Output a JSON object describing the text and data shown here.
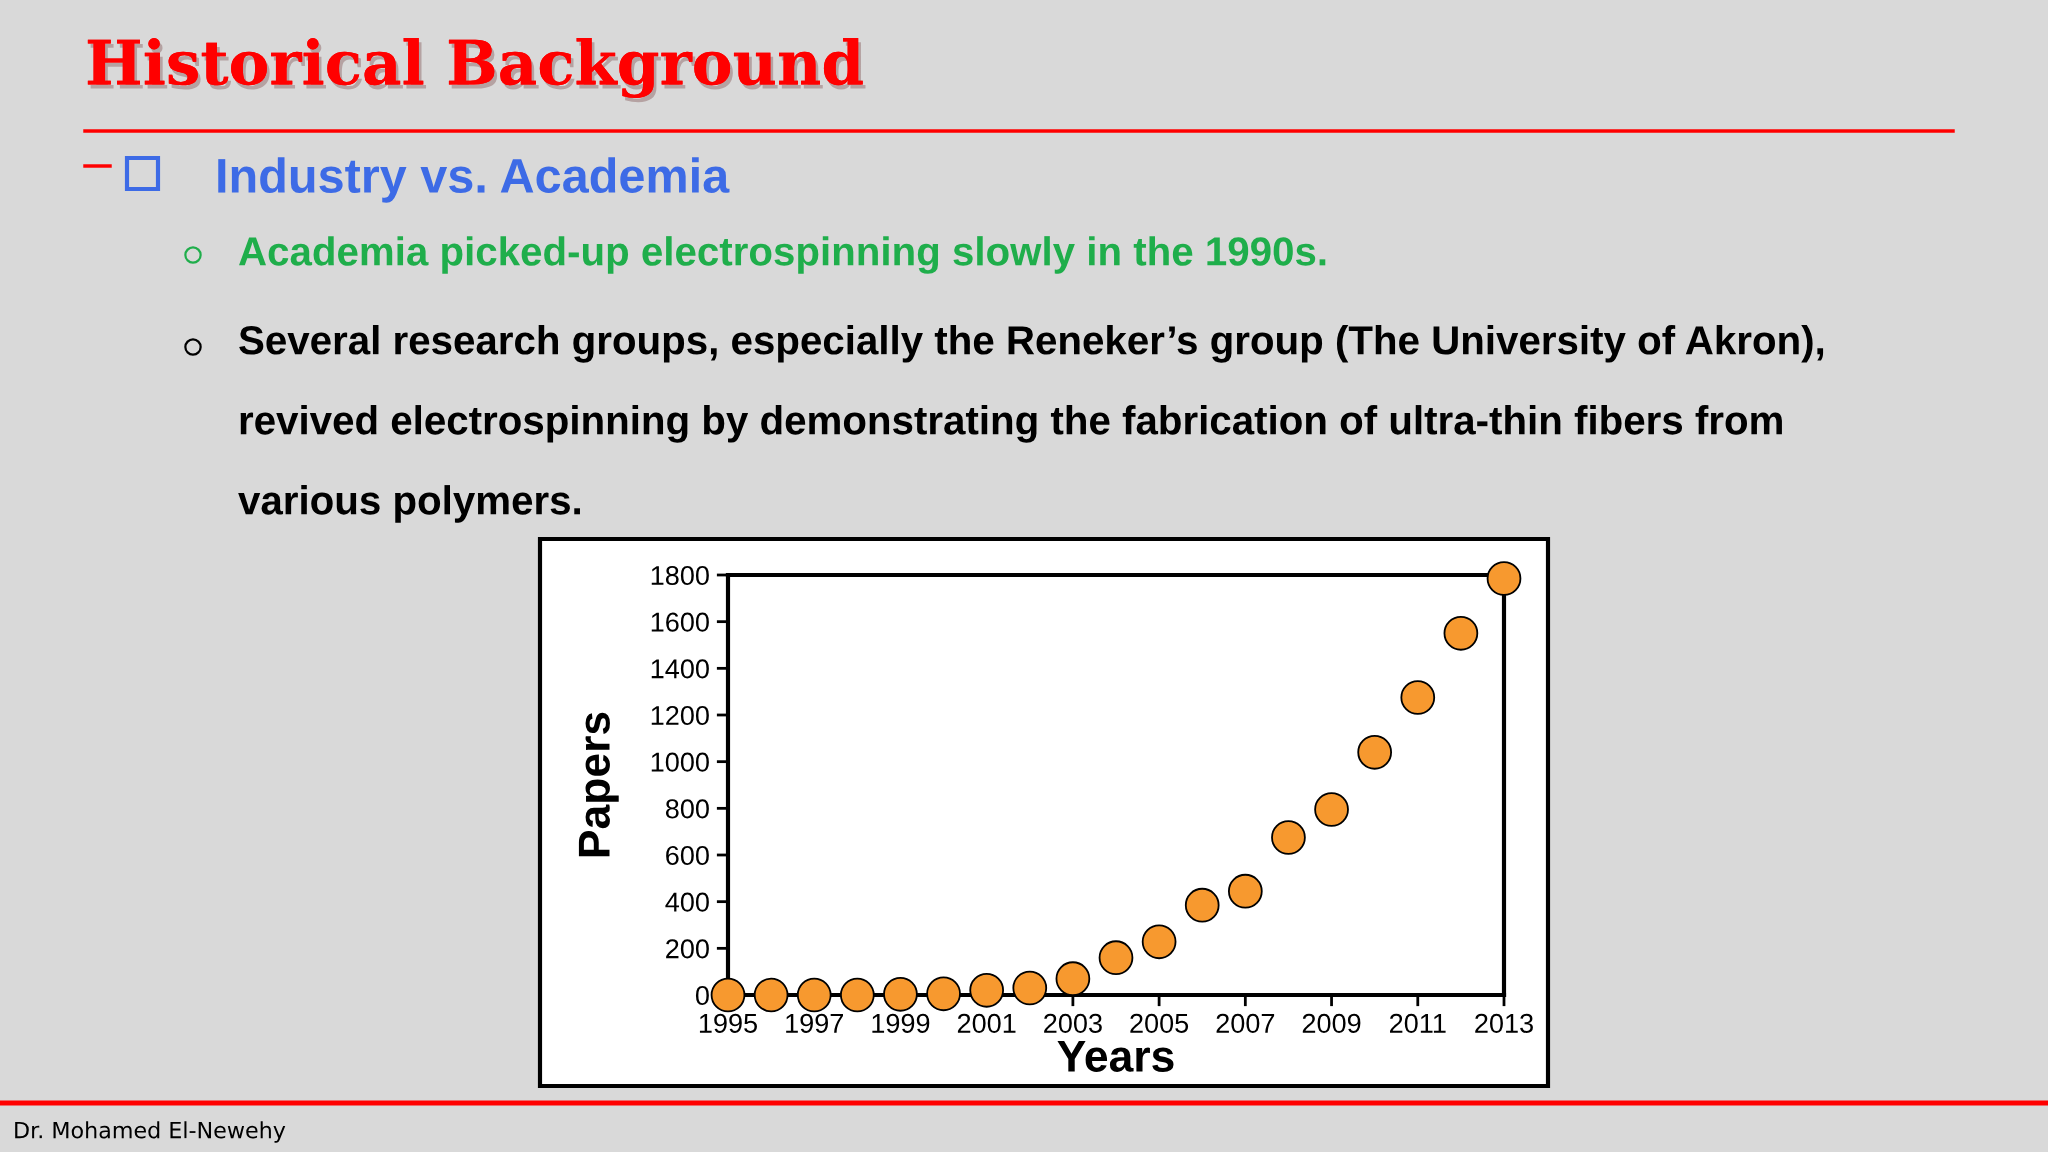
{
  "chart_data": {
    "type": "scatter",
    "title": "Historical Background",
    "subtitle": "Industry vs. Academia",
    "xlabel": "Years",
    "ylabel": "Papers",
    "x": [
      1995,
      1996,
      1997,
      1998,
      1999,
      2000,
      2001,
      2002,
      2003,
      2004,
      2005,
      2006,
      2007,
      2008,
      2009,
      2010,
      2011,
      2012,
      2013
    ],
    "series": [
      {
        "color": "#f7992f",
        "values": [
          0,
          0,
          0,
          0,
          3,
          5,
          20,
          30,
          70,
          160,
          228,
          385,
          445,
          675,
          795,
          1040,
          1275,
          1550,
          1785
        ]
      }
    ],
    "marker": "circle",
    "xlim": [
      1995,
      2013
    ],
    "xticks": [
      1995,
      1997,
      1999,
      2001,
      2003,
      2005,
      2007,
      2009,
      2011,
      2013
    ],
    "ylim": [
      0,
      1800
    ],
    "yticks": [
      0,
      200,
      400,
      600,
      800,
      1000,
      1200,
      1400,
      1600,
      1800
    ],
    "annotations": [
      "Academia picked-up electrospinning slowly in the 1990s.",
      "Several research groups, especially the Reneker’s group (The University of Akron), revived electrospinning by demonstrating the fabrication of ultra-thin fibers from various polymers.",
      "Dr. Mohamed El-Newehy"
    ]
  }
}
